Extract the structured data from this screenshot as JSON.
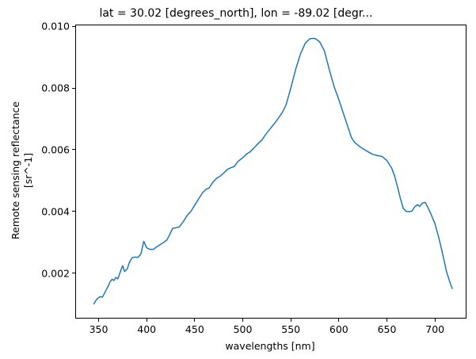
{
  "figure": {
    "title": "lat = 30.02 [degrees_north], lon = -89.02 [degr...",
    "background": "#ffffff"
  },
  "axes": {
    "xlabel": "wavelengths [nm]",
    "ylabel_line1": "Remote sensing reflectance",
    "ylabel_line2": "[sr^-1]",
    "x_tick_labels": [
      "350",
      "400",
      "450",
      "500",
      "550",
      "600",
      "650",
      "700"
    ],
    "x_tick_values": [
      350,
      400,
      450,
      500,
      550,
      600,
      650,
      700
    ],
    "y_tick_labels": [
      "0.002",
      "0.004",
      "0.006",
      "0.008",
      "0.010"
    ],
    "y_tick_values": [
      0.002,
      0.004,
      0.006,
      0.008,
      0.01
    ],
    "spine_color": "#000000",
    "tick_color": "#000000"
  },
  "chart_data": {
    "type": "line",
    "title": "lat = 30.02 [degrees_north], lon = -89.02 [degr...",
    "xlabel": "wavelengths [nm]",
    "ylabel": "Remote sensing reflectance [sr^-1]",
    "legend": false,
    "grid": false,
    "line_color": "#1f77b4",
    "line_width": 1.5,
    "xlim": [
      326.5,
      732
    ],
    "ylim": [
      0.00055,
      0.01003
    ],
    "x": [
      345,
      348,
      351,
      354,
      357,
      360,
      362,
      364,
      366,
      368,
      370,
      373,
      375,
      377,
      380,
      382,
      385,
      388,
      391,
      394,
      397,
      400,
      403,
      407,
      410,
      414,
      418,
      421,
      424,
      427,
      431,
      434,
      438,
      442,
      446,
      450,
      454,
      458,
      462,
      465,
      469,
      473,
      476,
      480,
      484,
      488,
      491,
      495,
      500,
      504,
      508,
      512,
      516,
      520,
      524,
      528,
      533,
      537,
      541,
      545,
      550,
      555,
      560,
      565,
      570,
      575,
      580,
      585,
      590,
      595,
      600,
      605,
      610,
      613,
      616,
      620,
      625,
      630,
      635,
      640,
      645,
      650,
      655,
      658,
      661,
      664,
      667,
      670,
      673,
      676,
      679,
      682,
      684,
      687,
      690,
      693,
      696,
      700,
      704,
      708,
      712,
      716,
      718
    ],
    "y": [
      0.001,
      0.00115,
      0.00123,
      0.00122,
      0.0014,
      0.00158,
      0.00172,
      0.0018,
      0.00176,
      0.00186,
      0.00181,
      0.00208,
      0.00224,
      0.00205,
      0.00215,
      0.00235,
      0.0025,
      0.00252,
      0.00251,
      0.00262,
      0.00303,
      0.00282,
      0.00277,
      0.00277,
      0.00284,
      0.00292,
      0.003,
      0.00307,
      0.00325,
      0.00345,
      0.00347,
      0.0035,
      0.00366,
      0.00386,
      0.004,
      0.0042,
      0.0044,
      0.0046,
      0.00472,
      0.00476,
      0.00495,
      0.00508,
      0.00513,
      0.00524,
      0.00536,
      0.00542,
      0.00545,
      0.00562,
      0.00574,
      0.00586,
      0.00594,
      0.00607,
      0.0062,
      0.00632,
      0.0065,
      0.00666,
      0.00685,
      0.00702,
      0.0072,
      0.00745,
      0.008,
      0.0086,
      0.0091,
      0.00945,
      0.0096,
      0.00961,
      0.0095,
      0.0092,
      0.0086,
      0.00805,
      0.00762,
      0.00715,
      0.00668,
      0.0064,
      0.00625,
      0.00614,
      0.00603,
      0.00594,
      0.00585,
      0.00581,
      0.00578,
      0.00565,
      0.0054,
      0.00515,
      0.0048,
      0.00442,
      0.0041,
      0.004,
      0.00399,
      0.00401,
      0.00415,
      0.00422,
      0.00416,
      0.00427,
      0.00429,
      0.0041,
      0.0039,
      0.0036,
      0.00315,
      0.00262,
      0.00205,
      0.00166,
      0.0015
    ]
  }
}
